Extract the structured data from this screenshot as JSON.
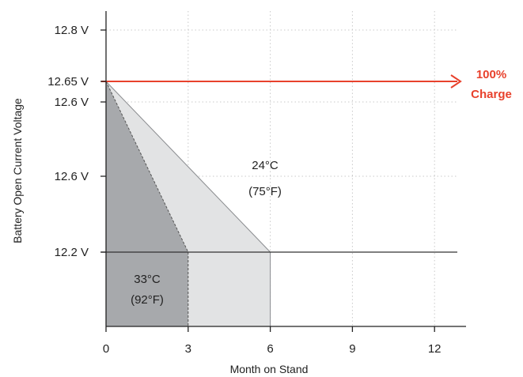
{
  "chart_data": {
    "type": "area",
    "xlabel": "Month on Stand",
    "ylabel": "Battery Open Current Voltage",
    "x_ticks": [
      "0",
      "3",
      "6",
      "9",
      "12"
    ],
    "y_ticks": [
      "12.8 V",
      "12.65 V",
      "12.6 V",
      "12.6 V",
      "12.2 V"
    ],
    "xlim": [
      0,
      13
    ],
    "grid": "dotted",
    "series": [
      {
        "name": "24°C (75°F)",
        "color": "#e2e3e4",
        "points": [
          {
            "x": 0,
            "y": "12.65 V"
          },
          {
            "x": 6,
            "y": "12.2 V"
          }
        ]
      },
      {
        "name": "33°C (92°F)",
        "color": "#a7a9ac",
        "points": [
          {
            "x": 0,
            "y": "12.65 V"
          },
          {
            "x": 3,
            "y": "12.2 V"
          }
        ]
      }
    ],
    "reference_lines": [
      {
        "y": "12.65 V",
        "label": "100% Charge",
        "color": "#e8412c"
      },
      {
        "y": "12.2 V",
        "color": "#333333"
      }
    ],
    "annotations": [
      {
        "series": "24°C (75°F)",
        "line1": "24°C",
        "line2": "(75°F)"
      },
      {
        "series": "33°C (92°F)",
        "line1": "33°C",
        "line2": "(92°F)"
      }
    ],
    "charge_label": {
      "line1": "100%",
      "line2": "Charge"
    }
  }
}
